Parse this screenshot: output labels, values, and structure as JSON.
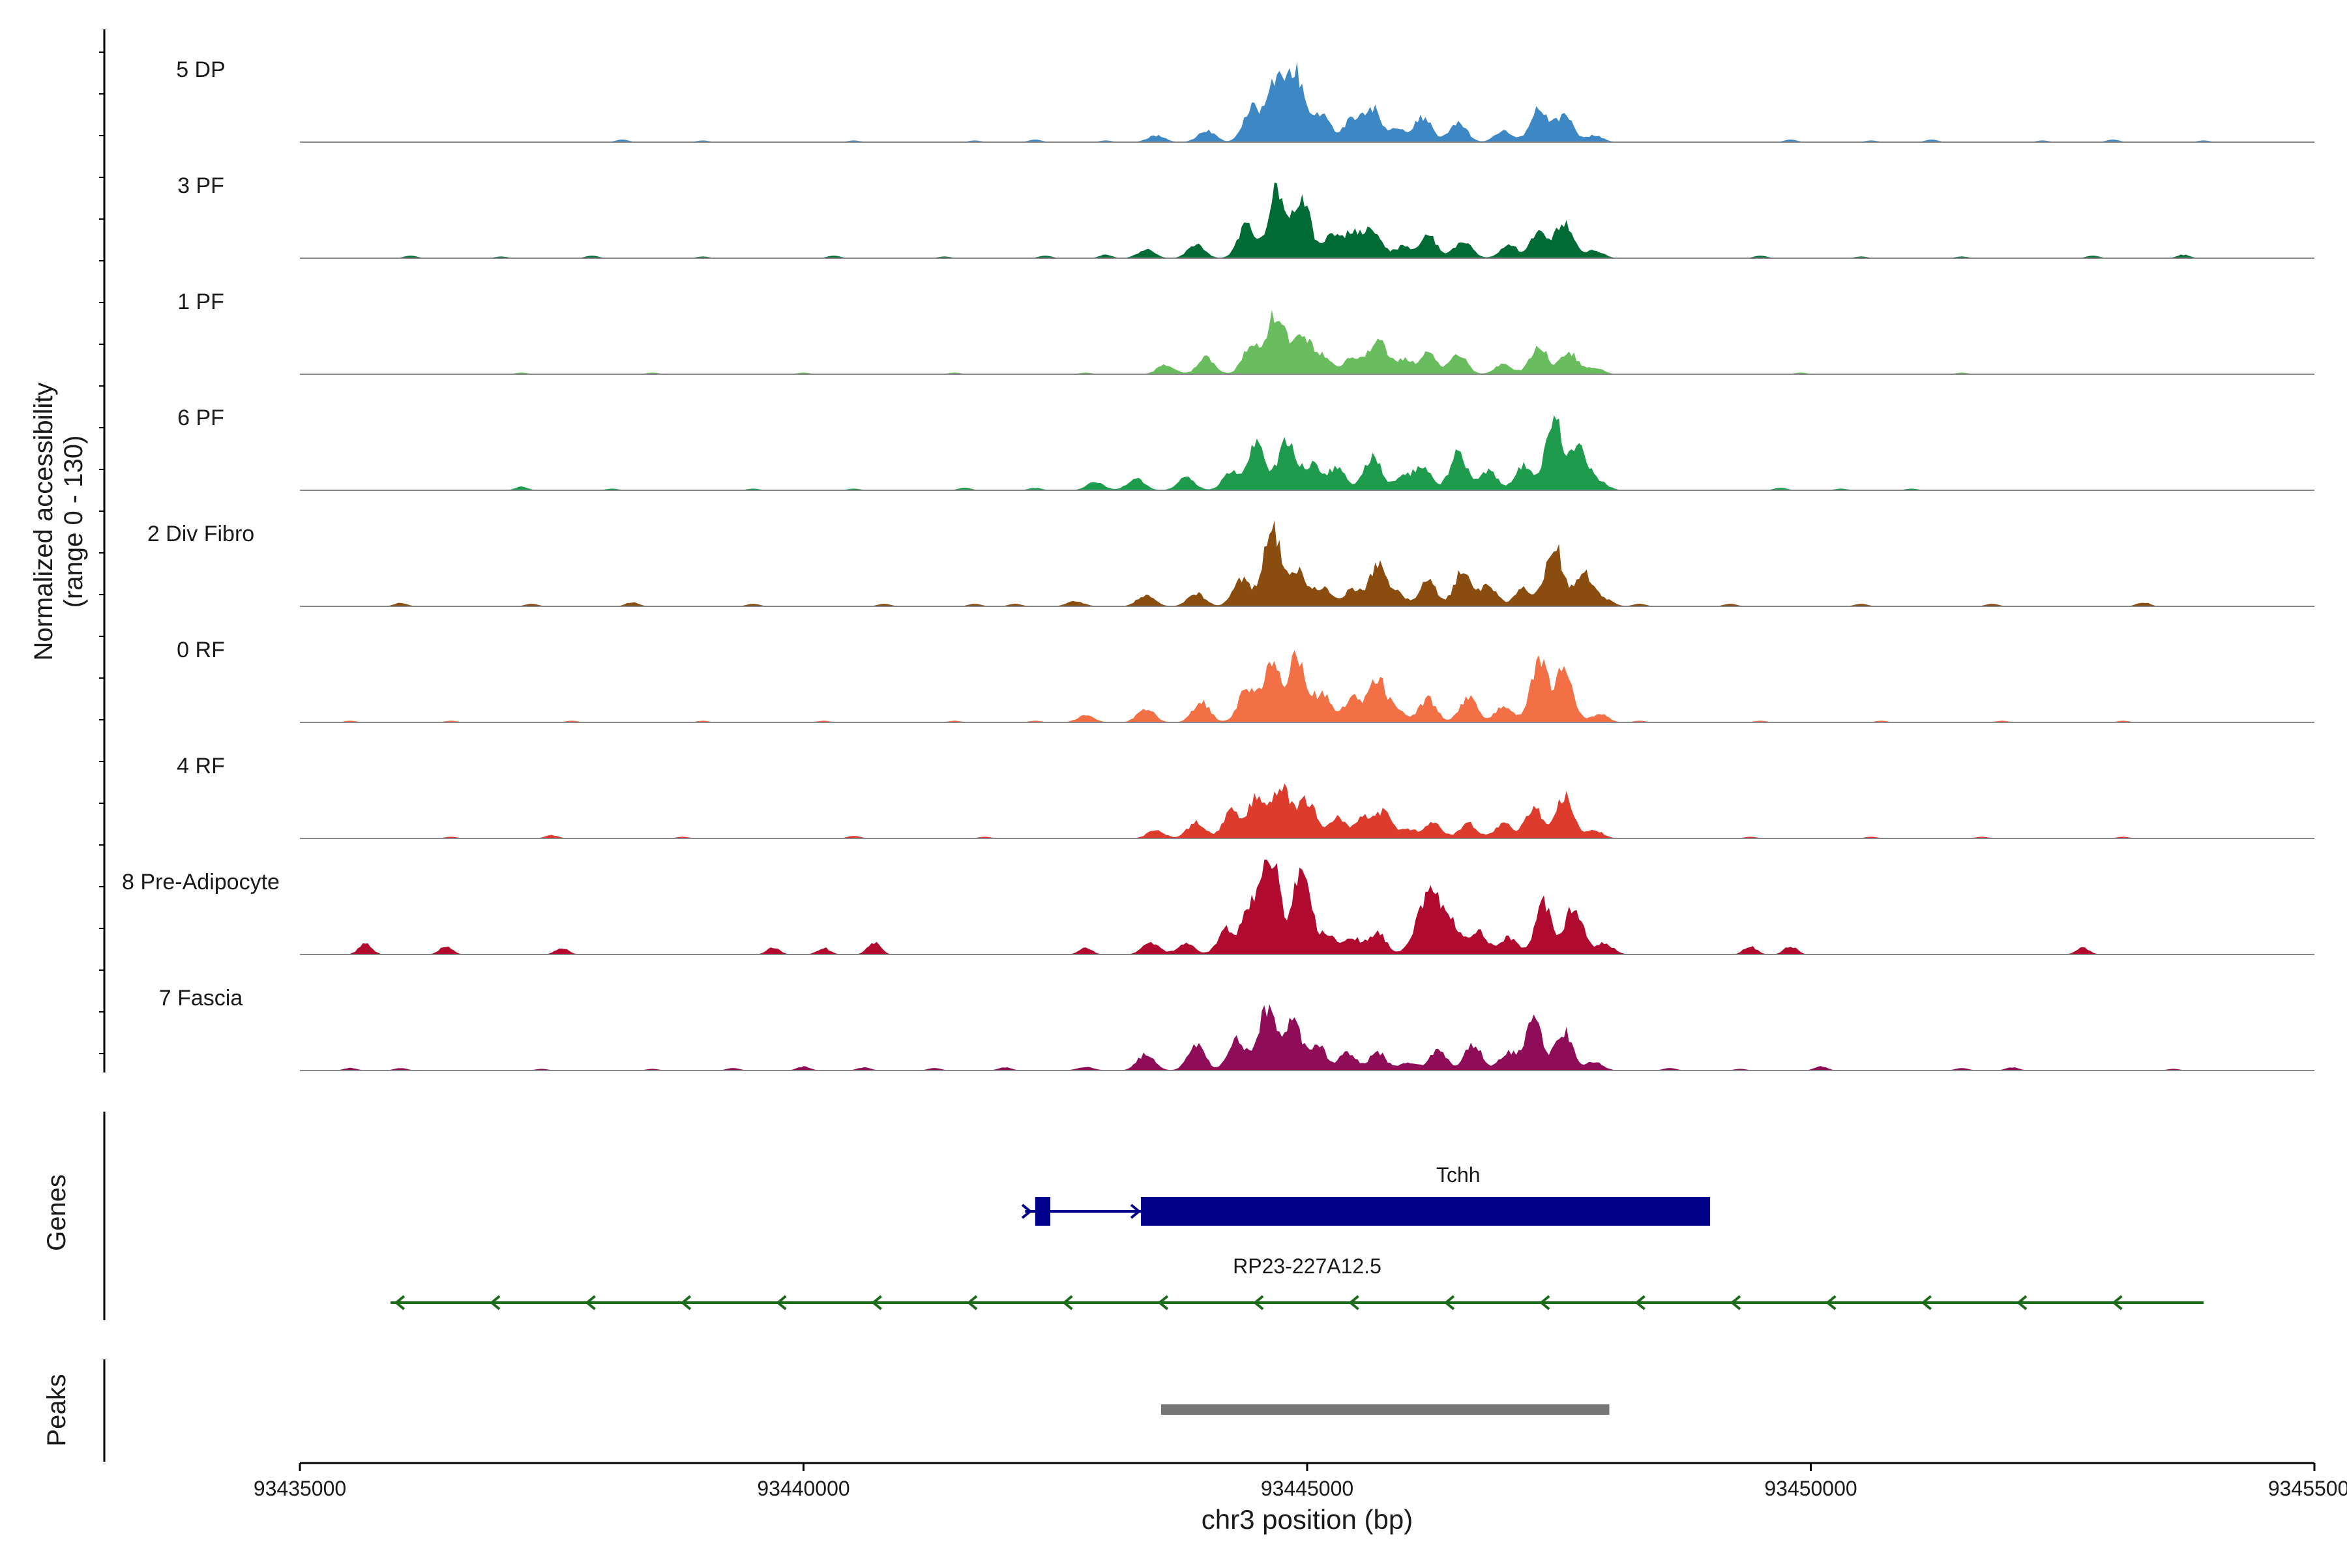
{
  "chart_data": {
    "type": "area",
    "title": "",
    "ylabel_line1": "Normalized accessibility",
    "ylabel_line2": "(range 0 - 130)",
    "y_range": [
      0,
      130
    ],
    "xlabel": "chr3 position (bp)",
    "x_range": [
      93435000,
      93455000
    ],
    "x_ticks": [
      93435000,
      93440000,
      93445000,
      93450000,
      93455000
    ],
    "x_tick_labels": [
      "93435000",
      "93440000",
      "93445000",
      "93450000",
      "93455000"
    ],
    "genes_label": "Genes",
    "peaks_label": "Peaks",
    "tracks": [
      {
        "name": "5 DP",
        "color": "#3d88c4",
        "peaks": [
          [
            93443500,
            8
          ],
          [
            93444000,
            14
          ],
          [
            93444450,
            40
          ],
          [
            93444700,
            82
          ],
          [
            93444900,
            78
          ],
          [
            93445150,
            34
          ],
          [
            93445450,
            28
          ],
          [
            93445650,
            40
          ],
          [
            93445900,
            14
          ],
          [
            93446150,
            30
          ],
          [
            93446500,
            24
          ],
          [
            93446950,
            14
          ],
          [
            93447300,
            40
          ],
          [
            93447550,
            32
          ],
          [
            93447850,
            8
          ]
        ],
        "baseline": [
          [
            93438200,
            3
          ],
          [
            93439000,
            2
          ],
          [
            93440500,
            2
          ],
          [
            93441700,
            2
          ],
          [
            93442300,
            3
          ],
          [
            93443000,
            2
          ],
          [
            93449800,
            3
          ],
          [
            93450600,
            2
          ],
          [
            93451200,
            3
          ],
          [
            93452300,
            2
          ],
          [
            93453000,
            3
          ],
          [
            93453900,
            2
          ]
        ]
      },
      {
        "name": "3 PF",
        "color": "#006b34",
        "peaks": [
          [
            93443400,
            10
          ],
          [
            93443900,
            16
          ],
          [
            93444400,
            40
          ],
          [
            93444700,
            80
          ],
          [
            93444950,
            70
          ],
          [
            93445250,
            26
          ],
          [
            93445450,
            28
          ],
          [
            93445650,
            36
          ],
          [
            93445950,
            14
          ],
          [
            93446200,
            28
          ],
          [
            93446550,
            22
          ],
          [
            93447000,
            16
          ],
          [
            93447300,
            32
          ],
          [
            93447550,
            44
          ],
          [
            93447850,
            10
          ]
        ],
        "baseline": [
          [
            93436100,
            3
          ],
          [
            93437000,
            2
          ],
          [
            93437900,
            3
          ],
          [
            93439000,
            2
          ],
          [
            93440300,
            3
          ],
          [
            93441400,
            2
          ],
          [
            93442400,
            3
          ],
          [
            93443000,
            4
          ],
          [
            93449500,
            3
          ],
          [
            93450500,
            2
          ],
          [
            93451500,
            2
          ],
          [
            93452800,
            3
          ],
          [
            93453700,
            4
          ]
        ]
      },
      {
        "name": "1 PF",
        "color": "#6abd5e",
        "peaks": [
          [
            93443600,
            12
          ],
          [
            93444000,
            20
          ],
          [
            93444450,
            38
          ],
          [
            93444700,
            76
          ],
          [
            93444950,
            48
          ],
          [
            93445150,
            22
          ],
          [
            93445450,
            22
          ],
          [
            93445700,
            42
          ],
          [
            93445950,
            18
          ],
          [
            93446200,
            26
          ],
          [
            93446500,
            24
          ],
          [
            93446950,
            12
          ],
          [
            93447300,
            34
          ],
          [
            93447600,
            26
          ],
          [
            93447850,
            8
          ]
        ],
        "baseline": [
          [
            93437200,
            2
          ],
          [
            93438500,
            2
          ],
          [
            93440000,
            2
          ],
          [
            93441500,
            2
          ],
          [
            93442800,
            2
          ],
          [
            93449900,
            2
          ],
          [
            93451500,
            2
          ]
        ]
      },
      {
        "name": "6 PF",
        "color": "#1f9b4e",
        "peaks": [
          [
            93442900,
            10
          ],
          [
            93443300,
            14
          ],
          [
            93443800,
            16
          ],
          [
            93444250,
            22
          ],
          [
            93444500,
            56
          ],
          [
            93444800,
            62
          ],
          [
            93445050,
            30
          ],
          [
            93445300,
            28
          ],
          [
            93445650,
            42
          ],
          [
            93445950,
            16
          ],
          [
            93446150,
            28
          ],
          [
            93446500,
            44
          ],
          [
            93446800,
            24
          ],
          [
            93447150,
            30
          ],
          [
            93447450,
            84
          ],
          [
            93447700,
            48
          ],
          [
            93447900,
            10
          ]
        ],
        "baseline": [
          [
            93437200,
            4
          ],
          [
            93438100,
            2
          ],
          [
            93439500,
            2
          ],
          [
            93440500,
            2
          ],
          [
            93441600,
            3
          ],
          [
            93442300,
            3
          ],
          [
            93449700,
            3
          ],
          [
            93450300,
            2
          ],
          [
            93451000,
            2
          ]
        ]
      },
      {
        "name": "2 Div Fibro",
        "color": "#8b4c0f",
        "peaks": [
          [
            93442700,
            6
          ],
          [
            93443400,
            14
          ],
          [
            93443900,
            16
          ],
          [
            93444350,
            34
          ],
          [
            93444650,
            96
          ],
          [
            93444900,
            44
          ],
          [
            93445150,
            22
          ],
          [
            93445450,
            20
          ],
          [
            93445700,
            48
          ],
          [
            93445900,
            14
          ],
          [
            93446200,
            30
          ],
          [
            93446550,
            44
          ],
          [
            93446800,
            24
          ],
          [
            93447150,
            22
          ],
          [
            93447450,
            76
          ],
          [
            93447750,
            40
          ],
          [
            93447950,
            8
          ]
        ],
        "baseline": [
          [
            93436000,
            4
          ],
          [
            93437300,
            3
          ],
          [
            93438300,
            5
          ],
          [
            93439500,
            3
          ],
          [
            93440800,
            3
          ],
          [
            93441700,
            3
          ],
          [
            93442100,
            3
          ],
          [
            93448300,
            3
          ],
          [
            93449200,
            3
          ],
          [
            93450500,
            3
          ],
          [
            93451800,
            3
          ],
          [
            93453300,
            5
          ]
        ]
      },
      {
        "name": "0 RF",
        "color": "#f36f45",
        "peaks": [
          [
            93442800,
            8
          ],
          [
            93443400,
            16
          ],
          [
            93443950,
            24
          ],
          [
            93444400,
            40
          ],
          [
            93444650,
            68
          ],
          [
            93444900,
            82
          ],
          [
            93445150,
            34
          ],
          [
            93445450,
            30
          ],
          [
            93445700,
            50
          ],
          [
            93445900,
            14
          ],
          [
            93446200,
            28
          ],
          [
            93446600,
            30
          ],
          [
            93446950,
            20
          ],
          [
            93447300,
            74
          ],
          [
            93447550,
            62
          ],
          [
            93447900,
            10
          ]
        ],
        "baseline": [
          [
            93435500,
            2
          ],
          [
            93436500,
            2
          ],
          [
            93437700,
            2
          ],
          [
            93439000,
            2
          ],
          [
            93440200,
            2
          ],
          [
            93441500,
            2
          ],
          [
            93442300,
            2
          ],
          [
            93448300,
            2
          ],
          [
            93449500,
            2
          ],
          [
            93450700,
            2
          ],
          [
            93451900,
            2
          ],
          [
            93453100,
            2
          ]
        ]
      },
      {
        "name": "4 RF",
        "color": "#dd3b2c",
        "peaks": [
          [
            93443500,
            10
          ],
          [
            93443900,
            20
          ],
          [
            93444250,
            32
          ],
          [
            93444500,
            52
          ],
          [
            93444750,
            66
          ],
          [
            93445000,
            46
          ],
          [
            93445300,
            24
          ],
          [
            93445550,
            22
          ],
          [
            93445750,
            32
          ],
          [
            93446000,
            10
          ],
          [
            93446250,
            20
          ],
          [
            93446600,
            18
          ],
          [
            93446950,
            18
          ],
          [
            93447250,
            38
          ],
          [
            93447550,
            52
          ],
          [
            93447850,
            10
          ]
        ],
        "baseline": [
          [
            93436500,
            2
          ],
          [
            93437500,
            4
          ],
          [
            93438800,
            2
          ],
          [
            93440500,
            3
          ],
          [
            93441800,
            2
          ],
          [
            93449400,
            2
          ],
          [
            93450600,
            2
          ],
          [
            93451700,
            2
          ],
          [
            93453100,
            2
          ]
        ]
      },
      {
        "name": "8 Pre-Adipocyte",
        "color": "#b00a2e",
        "peaks": [
          [
            93443450,
            14
          ],
          [
            93443800,
            14
          ],
          [
            93444200,
            30
          ],
          [
            93444450,
            60
          ],
          [
            93444650,
            118
          ],
          [
            93444950,
            110
          ],
          [
            93445200,
            22
          ],
          [
            93445450,
            20
          ],
          [
            93445700,
            26
          ],
          [
            93446100,
            30
          ],
          [
            93446250,
            70
          ],
          [
            93446450,
            34
          ],
          [
            93446700,
            28
          ],
          [
            93447000,
            20
          ],
          [
            93447350,
            62
          ],
          [
            93447650,
            60
          ],
          [
            93447950,
            14
          ]
        ],
        "baseline": [
          [
            93435650,
            14
          ],
          [
            93436450,
            10
          ],
          [
            93437600,
            8
          ],
          [
            93439700,
            8
          ],
          [
            93440200,
            8
          ],
          [
            93440700,
            14
          ],
          [
            93442800,
            8
          ],
          [
            93449400,
            10
          ],
          [
            93449800,
            10
          ],
          [
            93452700,
            8
          ]
        ]
      },
      {
        "name": "7 Fascia",
        "color": "#8e0c58",
        "peaks": [
          [
            93442800,
            4
          ],
          [
            93443400,
            20
          ],
          [
            93443900,
            30
          ],
          [
            93444300,
            38
          ],
          [
            93444600,
            72
          ],
          [
            93444850,
            60
          ],
          [
            93445100,
            32
          ],
          [
            93445400,
            22
          ],
          [
            93445700,
            22
          ],
          [
            93446000,
            10
          ],
          [
            93446300,
            24
          ],
          [
            93446650,
            32
          ],
          [
            93447000,
            22
          ],
          [
            93447250,
            58
          ],
          [
            93447550,
            48
          ],
          [
            93447850,
            10
          ]
        ],
        "baseline": [
          [
            93435500,
            3
          ],
          [
            93436000,
            3
          ],
          [
            93437400,
            2
          ],
          [
            93438500,
            2
          ],
          [
            93439300,
            3
          ],
          [
            93440000,
            5
          ],
          [
            93440600,
            4
          ],
          [
            93441300,
            3
          ],
          [
            93442000,
            4
          ],
          [
            93448600,
            3
          ],
          [
            93449300,
            2
          ],
          [
            93450100,
            5
          ],
          [
            93451500,
            3
          ],
          [
            93452000,
            4
          ],
          [
            93453600,
            2
          ]
        ]
      }
    ],
    "genes": [
      {
        "name": "Tchh",
        "strand": "+",
        "color": "#00008b",
        "start": 93442200,
        "end": 93449000,
        "exons": [
          [
            93442300,
            93442450
          ],
          [
            93443350,
            93449000
          ]
        ]
      },
      {
        "name": "RP23-227A12.5",
        "strand": "-",
        "color": "#1a6b1a",
        "start": 93435900,
        "end": 93453900,
        "exons": []
      }
    ],
    "peaks_regions": [
      [
        93443550,
        93448000
      ]
    ],
    "peak_color": "#777777"
  }
}
